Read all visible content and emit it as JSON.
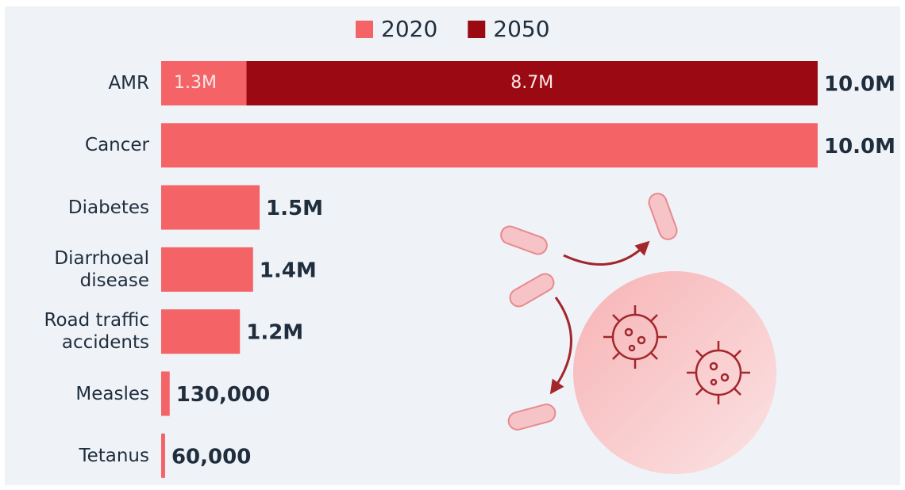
{
  "chart_data": {
    "type": "stacked-bar-horizontal",
    "categories": [
      "AMR",
      "Cancer",
      "Diabetes",
      "Diarrhoeal disease",
      "Road traffic accidents",
      "Measles",
      "Tetanus"
    ],
    "series": [
      {
        "name": "2020",
        "color": "#f46366",
        "values": [
          1300000,
          10000000,
          1500000,
          1400000,
          1200000,
          130000,
          60000
        ],
        "value_labels": [
          "1.3M",
          "10.0M",
          "1.5M",
          "1.4M",
          "1.2M",
          "130,000",
          "60,000"
        ]
      },
      {
        "name": "2050",
        "color": "#9b0a12",
        "values": [
          8700000,
          null,
          null,
          null,
          null,
          null,
          null
        ],
        "value_labels": [
          "8.7M",
          null,
          null,
          null,
          null,
          null,
          null
        ]
      }
    ],
    "totals": [
      {
        "value": 10000000,
        "label": "10.0M"
      },
      null,
      null,
      null,
      null,
      null,
      null
    ],
    "xlim": [
      0,
      10000000
    ]
  }
}
